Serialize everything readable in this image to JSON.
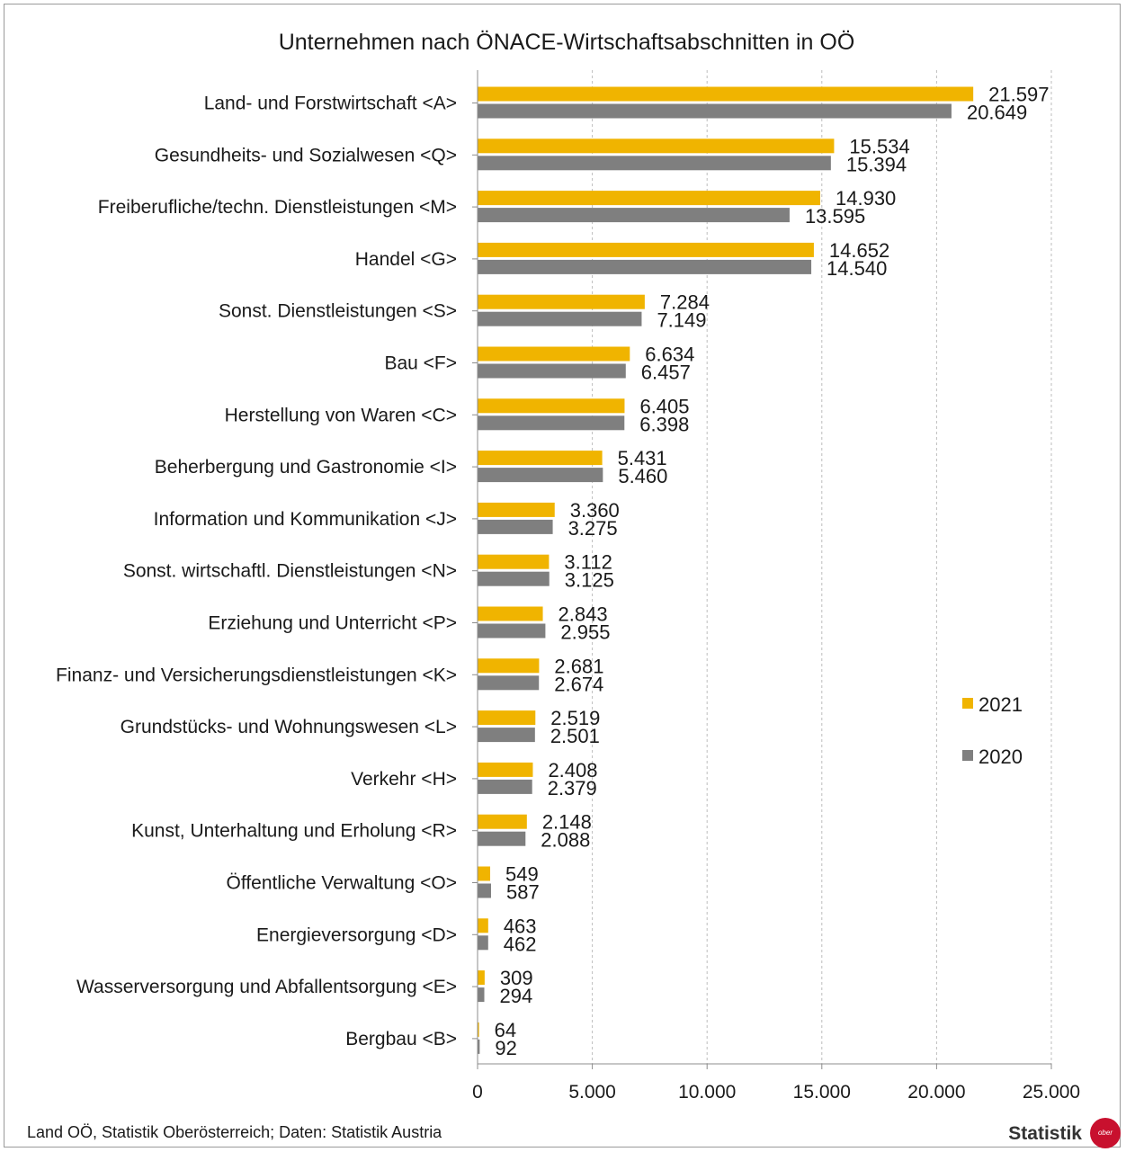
{
  "chart_data": {
    "type": "bar",
    "orientation": "horizontal",
    "title": "Unternehmen nach ÖNACE-Wirtschaftsabschnitten in OÖ",
    "categories": [
      "Land- und Forstwirtschaft <A>",
      "Gesundheits- und Sozialwesen <Q>",
      "Freiberufliche/techn. Dienstleistungen <M>",
      "Handel <G>",
      "Sonst. Dienstleistungen <S>",
      "Bau <F>",
      "Herstellung von Waren <C>",
      "Beherbergung und Gastronomie <I>",
      "Information und Kommunikation <J>",
      "Sonst. wirtschaftl. Dienstleistungen <N>",
      "Erziehung und Unterricht <P>",
      "Finanz- und Versicherungsdienstleistungen <K>",
      "Grundstücks- und Wohnungswesen <L>",
      "Verkehr <H>",
      "Kunst, Unterhaltung und Erholung <R>",
      "Öffentliche Verwaltung <O>",
      "Energieversorgung <D>",
      "Wasserversorgung und Abfallentsorgung <E>",
      "Bergbau <B>"
    ],
    "series": [
      {
        "name": "2021",
        "color": "#f0b400",
        "values": [
          21597,
          15534,
          14930,
          14652,
          7284,
          6634,
          6405,
          5431,
          3360,
          3112,
          2843,
          2681,
          2519,
          2408,
          2148,
          549,
          463,
          309,
          64
        ],
        "labels": [
          "21.597",
          "15.534",
          "14.930",
          "14.652",
          "7.284",
          "6.634",
          "6.405",
          "5.431",
          "3.360",
          "3.112",
          "2.843",
          "2.681",
          "2.519",
          "2.408",
          "2.148",
          "549",
          "463",
          "309",
          "64"
        ]
      },
      {
        "name": "2020",
        "color": "#7f7f7f",
        "values": [
          20649,
          15394,
          13595,
          14540,
          7149,
          6457,
          6398,
          5460,
          3275,
          3125,
          2955,
          2674,
          2501,
          2379,
          2088,
          587,
          462,
          294,
          92
        ],
        "labels": [
          "20.649",
          "15.394",
          "13.595",
          "14.540",
          "7.149",
          "6.457",
          "6.398",
          "5.460",
          "3.275",
          "3.125",
          "2.955",
          "2.674",
          "2.501",
          "2.379",
          "2.088",
          "587",
          "462",
          "294",
          "92"
        ]
      }
    ],
    "xlim": [
      0,
      25000
    ],
    "x_ticks": [
      0,
      5000,
      10000,
      15000,
      20000,
      25000
    ],
    "x_tick_labels": [
      "0",
      "5.000",
      "10.000",
      "15.000",
      "20.000",
      "25.000"
    ],
    "grid": "vertical dashed",
    "legend": "right"
  },
  "footer": {
    "source": "Land OÖ, Statistik Oberösterreich; Daten: Statistik Austria",
    "brand": "Statistik",
    "logo_text": "ober"
  }
}
